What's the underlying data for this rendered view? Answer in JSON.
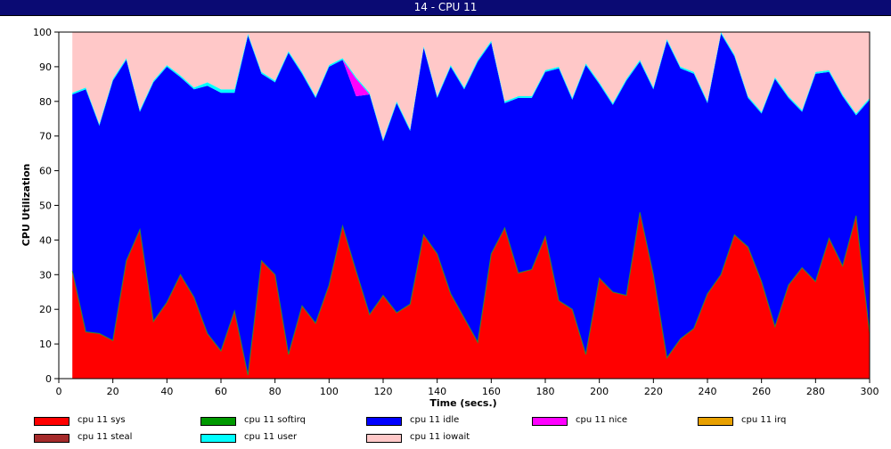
{
  "window": {
    "title": "14 - CPU 11"
  },
  "chart_data": {
    "type": "area",
    "stacked": true,
    "xlabel": "Time (secs.)",
    "ylabel": "CPU Utilization",
    "xlim": [
      0,
      300
    ],
    "ylim": [
      0,
      100
    ],
    "xticks": [
      0,
      20,
      40,
      60,
      80,
      100,
      120,
      140,
      160,
      180,
      200,
      220,
      240,
      260,
      280,
      300
    ],
    "yticks": [
      0,
      10,
      20,
      30,
      40,
      50,
      60,
      70,
      80,
      90,
      100
    ],
    "grid": false,
    "legend_position": "bottom",
    "x": [
      5,
      10,
      15,
      20,
      25,
      30,
      35,
      40,
      45,
      50,
      55,
      60,
      65,
      70,
      75,
      80,
      85,
      90,
      95,
      100,
      105,
      110,
      115,
      120,
      125,
      130,
      135,
      140,
      145,
      150,
      155,
      160,
      165,
      170,
      175,
      180,
      185,
      190,
      195,
      200,
      205,
      210,
      215,
      220,
      225,
      230,
      235,
      240,
      245,
      250,
      255,
      260,
      265,
      270,
      275,
      280,
      285,
      290,
      295,
      300
    ],
    "series": [
      {
        "name": "cpu 11 sys",
        "color": "#ff0000",
        "values": [
          31,
          13.5,
          13,
          11,
          34,
          43,
          16.5,
          22,
          30,
          23.5,
          13,
          8,
          19.5,
          1,
          34,
          30,
          7,
          21,
          16,
          27,
          44,
          31,
          18.5,
          24,
          19,
          21.5,
          41.5,
          36,
          24.5,
          17.5,
          10.5,
          36,
          43.5,
          30.5,
          31.5,
          41,
          22.5,
          20,
          7,
          29,
          25,
          24,
          48,
          30,
          6,
          11.5,
          14.5,
          24.5,
          30,
          41.5,
          38,
          28,
          15,
          27,
          32,
          28,
          40.5,
          32.5,
          47,
          13
        ]
      },
      {
        "name": "cpu 11 softirq",
        "color": "#009900",
        "values": [
          0,
          0,
          0,
          0,
          0,
          0,
          0,
          0,
          0,
          0,
          0,
          0,
          0,
          0,
          0,
          0,
          0,
          0,
          0,
          0,
          0,
          0,
          0,
          0,
          0,
          0,
          0,
          0,
          0,
          0,
          0,
          0,
          0,
          0,
          0,
          0,
          0,
          0,
          0,
          0,
          0,
          0,
          0,
          0,
          0,
          0,
          0,
          0,
          0,
          0,
          0,
          0,
          0,
          0,
          0,
          0,
          0,
          0,
          0,
          0
        ]
      },
      {
        "name": "cpu 11 idle",
        "color": "#0000ff",
        "values": [
          51,
          70,
          60,
          75,
          58,
          34,
          69,
          68,
          57,
          60,
          71.5,
          74.5,
          63,
          98,
          54,
          55.5,
          87,
          67,
          65,
          63,
          48,
          50.5,
          63.5,
          44.5,
          60.5,
          50,
          54,
          45,
          65.5,
          66,
          81,
          61,
          36,
          50.5,
          49.5,
          47.5,
          67,
          60.5,
          83.5,
          56,
          54,
          62,
          43.5,
          53.5,
          91.5,
          78,
          73.5,
          55,
          69.5,
          51.5,
          43,
          48.5,
          71.5,
          54,
          45,
          60,
          48,
          49,
          29,
          67.5
        ]
      },
      {
        "name": "cpu 11 nice",
        "color": "#ff00ff",
        "values": [
          0,
          0,
          0,
          0,
          0,
          0,
          0,
          0,
          0,
          0,
          0,
          0,
          0,
          0,
          0,
          0,
          0,
          0,
          0,
          0,
          0,
          5,
          0,
          0,
          0,
          0,
          0,
          0,
          0,
          0,
          0,
          0,
          0,
          0,
          0,
          0,
          0,
          0,
          0,
          0,
          0,
          0,
          0,
          0,
          0,
          0,
          0,
          0,
          0,
          0,
          0,
          0,
          0,
          0,
          0,
          0,
          0,
          0,
          0,
          0
        ]
      },
      {
        "name": "cpu 11 irq",
        "color": "#e8a000",
        "values": [
          0,
          0,
          0,
          0,
          0,
          0,
          0,
          0,
          0,
          0,
          0,
          0,
          0,
          0,
          0,
          0,
          0,
          0,
          0,
          0,
          0,
          0,
          0,
          0,
          0,
          0,
          0,
          0,
          0,
          0,
          0,
          0,
          0,
          0,
          0,
          0,
          0,
          0,
          0,
          0,
          0,
          0,
          0,
          0,
          0,
          0,
          0,
          0,
          0,
          0,
          0,
          0,
          0,
          0,
          0,
          0,
          0,
          0,
          0,
          0
        ]
      },
      {
        "name": "cpu 11 steal",
        "color": "#a52a2a",
        "values": [
          0,
          0,
          0,
          0,
          0,
          0,
          0,
          0,
          0,
          0,
          0,
          0,
          0,
          0,
          0,
          0,
          0,
          0,
          0,
          0,
          0,
          0,
          0,
          0,
          0,
          0,
          0,
          0,
          0,
          0,
          0,
          0,
          0,
          0,
          0,
          0,
          0,
          0,
          0,
          0,
          0,
          0,
          0,
          0,
          0,
          0,
          0,
          0,
          0,
          0,
          0,
          0,
          0,
          0,
          0,
          0,
          0,
          0,
          0,
          0
        ]
      },
      {
        "name": "cpu 11 user",
        "color": "#00ffff",
        "values": [
          0.5,
          0.5,
          0.5,
          0.5,
          0.5,
          0.5,
          0.5,
          0.5,
          0.5,
          0.5,
          1,
          1,
          1,
          0.5,
          0.5,
          0.5,
          0.5,
          0.5,
          0.5,
          0.5,
          0.5,
          0.5,
          0.5,
          0.5,
          0.5,
          0.5,
          0.5,
          0.5,
          0.5,
          0.5,
          0.5,
          0.5,
          0.5,
          0.5,
          0.5,
          0.5,
          0.5,
          0.5,
          0.5,
          0.5,
          0.5,
          0.5,
          0.5,
          0.5,
          0.5,
          0.5,
          0.5,
          0.5,
          0.5,
          0.5,
          0.5,
          0.5,
          0.5,
          0.5,
          0.5,
          0.5,
          0.5,
          0.5,
          0.5,
          0.5
        ]
      },
      {
        "name": "cpu 11 iowait",
        "color": "#ffc8c8",
        "values": [
          17.5,
          16,
          26.5,
          13.5,
          7.5,
          22.5,
          14,
          9.5,
          12.5,
          16,
          14.5,
          16.5,
          16.5,
          0.5,
          11.5,
          14,
          5.5,
          11.5,
          18.5,
          9.5,
          7.5,
          13,
          17.5,
          31,
          20,
          28,
          4,
          18.5,
          9.5,
          16,
          8,
          2.5,
          20,
          18.5,
          18.5,
          11,
          10,
          19,
          9,
          14.5,
          20.5,
          13.5,
          8,
          16,
          2,
          10,
          11.5,
          20,
          0,
          6.5,
          18.5,
          23,
          13,
          18.5,
          22.5,
          11.5,
          11,
          18,
          23.5,
          19
        ]
      }
    ]
  }
}
